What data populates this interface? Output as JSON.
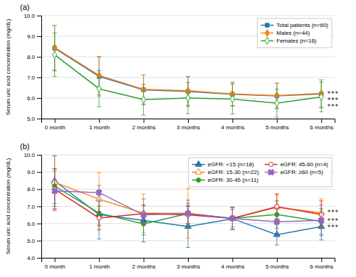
{
  "chart_data": [
    {
      "type": "line",
      "title": "(a)",
      "categories": [
        "0 month",
        "1 month",
        "2 months",
        "3 months",
        "4 months",
        "5 months",
        "6 months"
      ],
      "ylabel": "Serum uric acid concentration (mg/dL)",
      "ylim": [
        5,
        10
      ],
      "yticks": [
        {
          "value": 5,
          "label": "5.0"
        },
        {
          "value": 6,
          "label": "6.0"
        },
        {
          "value": 7,
          "label": "7.0"
        },
        {
          "value": 8,
          "label": "8.0"
        },
        {
          "value": 9,
          "label": "9.0"
        },
        {
          "value": 10,
          "label": "10.0"
        }
      ],
      "grid": true,
      "legend": "upper right",
      "series": [
        {
          "name": "Total patients (n=60)",
          "marker": "square",
          "values": [
            8.42,
            7.05,
            6.4,
            6.32,
            6.18,
            6.1,
            6.2
          ],
          "error": [
            1.1,
            0.95,
            0.72,
            0.72,
            0.58,
            0.62,
            0.68
          ]
        },
        {
          "name": "Males (n=44)",
          "marker": "diamond",
          "values": [
            8.45,
            7.1,
            6.42,
            6.35,
            6.2,
            6.12,
            6.22
          ],
          "error": [
            1.08,
            0.92,
            0.7,
            0.7,
            0.56,
            0.6,
            0.66
          ]
        },
        {
          "name": "Females (n=16)",
          "marker": "diamond-open",
          "values": [
            8.1,
            6.45,
            5.92,
            6.0,
            5.95,
            5.75,
            6.05
          ],
          "error": [
            1.05,
            0.88,
            0.75,
            0.75,
            0.72,
            0.68,
            0.72
          ]
        }
      ],
      "annotations": [
        {
          "text": "***",
          "series": 0
        },
        {
          "text": "***",
          "series": 1
        },
        {
          "text": "***",
          "series": 2
        }
      ]
    },
    {
      "type": "line",
      "title": "(b)",
      "categories": [
        "0 month",
        "1 month",
        "2 months",
        "3 months",
        "4 months",
        "5 months",
        "6 months"
      ],
      "ylabel": "Serum uric acid concentration (mg/dL)",
      "ylim": [
        4,
        10
      ],
      "yticks": [
        {
          "value": 4,
          "label": "4.0"
        },
        {
          "value": 5,
          "label": "5.0"
        },
        {
          "value": 6,
          "label": "6.0"
        },
        {
          "value": 7,
          "label": "7.0"
        },
        {
          "value": 8,
          "label": "8.0"
        },
        {
          "value": 9,
          "label": "9.0"
        },
        {
          "value": 10,
          "label": "10.0"
        }
      ],
      "grid": true,
      "legend": "upper right",
      "series": [
        {
          "name": "eGFR: <15 (n=18)",
          "marker": "triangle",
          "values": [
            8.48,
            6.52,
            6.18,
            5.82,
            6.28,
            5.35,
            5.82
          ],
          "error": [
            1.48,
            1.42,
            1.25,
            1.22,
            0.65,
            0.6,
            0.78
          ]
        },
        {
          "name": "eGFR: 15-30 (n=22)",
          "marker": "triangle-open",
          "values": [
            8.4,
            7.42,
            6.6,
            6.6,
            6.3,
            6.95,
            6.62
          ],
          "error": [
            1.52,
            1.55,
            1.12,
            1.45,
            0.65,
            0.8,
            0.82
          ]
        },
        {
          "name": "eGFR: 30-45 (n=11)",
          "marker": "circle",
          "values": [
            8.18,
            6.6,
            5.98,
            6.58,
            6.3,
            6.52,
            6.12
          ],
          "error": [
            1.02,
            0.7,
            0.65,
            0.78,
            0.65,
            0.8,
            0.75
          ]
        },
        {
          "name": "eGFR: 45-60 (n=4)",
          "marker": "circle-open",
          "values": [
            8.0,
            6.32,
            6.58,
            6.5,
            6.3,
            6.98,
            6.52
          ],
          "error": [
            1.18,
            0.7,
            0.5,
            0.5,
            0.52,
            0.7,
            0.8
          ]
        },
        {
          "name": "eGFR: ≥60 (n=5)",
          "marker": "x",
          "values": [
            7.9,
            7.8,
            6.5,
            6.58,
            6.3,
            6.1,
            6.18
          ],
          "error": [
            1.15,
            0.42,
            0.52,
            0.6,
            0.65,
            0.8,
            0.9
          ]
        }
      ],
      "annotations": [
        {
          "text": "***",
          "series": 1
        },
        {
          "text": "***",
          "series": 2
        },
        {
          "text": "***",
          "series": 0
        }
      ]
    }
  ]
}
